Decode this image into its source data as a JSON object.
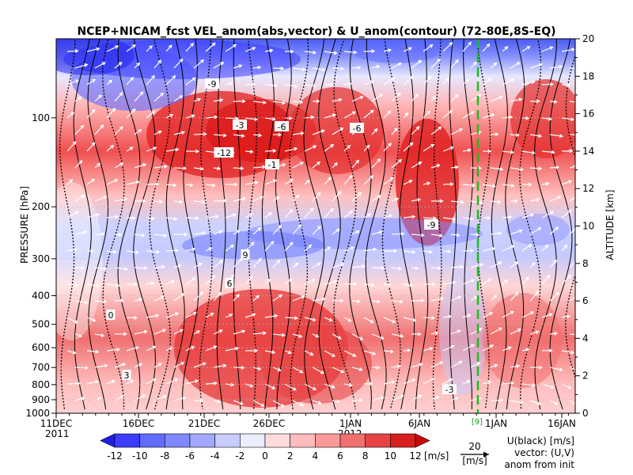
{
  "chart_data": {
    "type": "heatmap",
    "title": "NCEP+NICAM_fcst VEL_anom(abs,vector) & U_anom(contour)   (72-80E,8S-EQ)",
    "ylabel_left": "PRESSURE [hPa]",
    "ylabel_right": "ALTITUDE [km]",
    "x_ticks": [
      "11DEC",
      "16DEC",
      "21DEC",
      "26DEC",
      "1JAN",
      "6JAN",
      "1JAN",
      "16JAN"
    ],
    "x_year_start": "2011",
    "x_year_mid": "2012",
    "y_ticks_pressure": [
      "100",
      "200",
      "300",
      "400",
      "500",
      "600",
      "700",
      "800",
      "900",
      "1000"
    ],
    "y_ticks_altitude": [
      "0",
      "2",
      "4",
      "6",
      "8",
      "10",
      "12",
      "14",
      "16",
      "18",
      "20"
    ],
    "ylim_altitude_km": [
      0,
      20
    ],
    "forecast_marker_label": "[9]",
    "colorbar": {
      "ticks": [
        "-12",
        "-10",
        "-8",
        "-6",
        "-4",
        "-2",
        "0",
        "2",
        "4",
        "6",
        "8",
        "10",
        "12"
      ],
      "unit": "[m/s]",
      "levels": [
        -12,
        -10,
        -8,
        -6,
        -4,
        -2,
        0,
        2,
        4,
        6,
        8,
        10,
        12
      ],
      "colors": [
        "#1e1ee6",
        "#3c3cff",
        "#5f6bff",
        "#8088ff",
        "#a2a8ff",
        "#c8ccff",
        "#ecedff",
        "#ffdcdc",
        "#ffbcbc",
        "#fb9a9a",
        "#f26f6f",
        "#e64444",
        "#d81f1f",
        "#c80808"
      ]
    },
    "vector_ref": {
      "value": "20",
      "unit": "[m/s]"
    },
    "legend_lines": [
      "U(black) [m/s]",
      "vector: (U,V)",
      "anom from init"
    ],
    "contour_labels": [
      "-9",
      "-3",
      "-6",
      "-12",
      "-1",
      "-6",
      "-9",
      "3",
      "6",
      "9",
      "0",
      "-3"
    ]
  }
}
